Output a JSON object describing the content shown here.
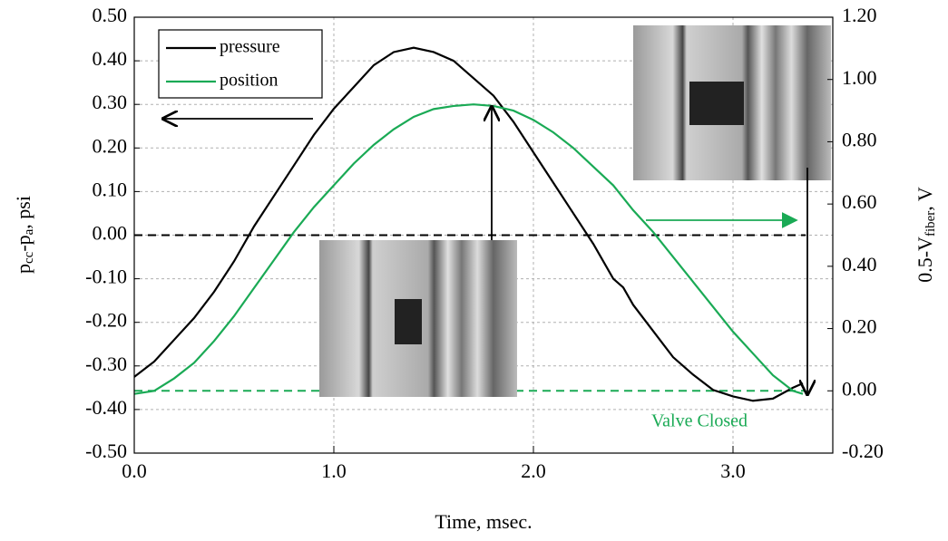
{
  "chart_data": {
    "type": "line",
    "xlabel": "Time, msec.",
    "ylabel": [
      "p",
      "cc",
      "-p",
      "a",
      ", psi"
    ],
    "y2label": [
      "0.5-V",
      "fiber",
      ", V"
    ],
    "x": [
      0.0,
      0.1,
      0.2,
      0.3,
      0.4,
      0.5,
      0.6,
      0.7,
      0.8,
      0.9,
      1.0,
      1.1,
      1.2,
      1.3,
      1.4,
      1.5,
      1.6,
      1.7,
      1.8,
      1.9,
      2.0,
      2.1,
      2.2,
      2.3,
      2.4,
      2.45,
      2.5,
      2.6,
      2.7,
      2.8,
      2.9,
      3.0,
      3.1,
      3.2,
      3.3,
      3.35
    ],
    "series": [
      {
        "name": "pressure",
        "color": "#000000",
        "axis": "y",
        "values": [
          -0.325,
          -0.29,
          -0.24,
          -0.19,
          -0.13,
          -0.06,
          0.02,
          0.09,
          0.16,
          0.23,
          0.29,
          0.34,
          0.39,
          0.42,
          0.43,
          0.42,
          0.4,
          0.36,
          0.32,
          0.26,
          0.19,
          0.12,
          0.05,
          -0.02,
          -0.1,
          -0.12,
          -0.16,
          -0.22,
          -0.28,
          -0.32,
          -0.355,
          -0.37,
          -0.38,
          -0.375,
          -0.35,
          -0.34
        ]
      },
      {
        "name": "position",
        "color": "#1aaa55",
        "axis": "y2",
        "values": [
          -0.01,
          0.0,
          0.04,
          0.09,
          0.16,
          0.24,
          0.33,
          0.42,
          0.51,
          0.59,
          0.66,
          0.73,
          0.79,
          0.84,
          0.88,
          0.905,
          0.915,
          0.92,
          0.915,
          0.9,
          0.87,
          0.83,
          0.78,
          0.72,
          0.66,
          0.62,
          0.58,
          0.51,
          0.43,
          0.35,
          0.27,
          0.19,
          0.12,
          0.05,
          0.0,
          -0.01
        ]
      }
    ],
    "hlines": [
      {
        "axis": "y",
        "value": 0,
        "color": "#000000"
      },
      {
        "axis": "y2",
        "value": 0,
        "color": "#1aaa55"
      }
    ],
    "annotation": "Valve Closed",
    "xlim": [
      0,
      3.5
    ],
    "xticks": [
      {
        "value": 0,
        "label": "0.0"
      },
      {
        "value": 1,
        "label": "1.0"
      },
      {
        "value": 2,
        "label": "2.0"
      },
      {
        "value": 3,
        "label": "3.0"
      }
    ],
    "ylim": [
      -0.5,
      0.5
    ],
    "yticks": [
      {
        "value": -0.5,
        "label": "-0.50"
      },
      {
        "value": -0.4,
        "label": "-0.40"
      },
      {
        "value": -0.3,
        "label": "-0.30"
      },
      {
        "value": -0.2,
        "label": "-0.20"
      },
      {
        "value": -0.1,
        "label": "-0.10"
      },
      {
        "value": 0,
        "label": "0.00"
      },
      {
        "value": 0.1,
        "label": "0.10"
      },
      {
        "value": 0.2,
        "label": "0.20"
      },
      {
        "value": 0.3,
        "label": "0.30"
      },
      {
        "value": 0.4,
        "label": "0.40"
      },
      {
        "value": 0.5,
        "label": "0.50"
      }
    ],
    "y2lim": [
      -0.2,
      1.2
    ],
    "y2ticks": [
      {
        "value": -0.2,
        "label": "-0.20"
      },
      {
        "value": 0,
        "label": "0.00"
      },
      {
        "value": 0.2,
        "label": "0.20"
      },
      {
        "value": 0.4,
        "label": "0.40"
      },
      {
        "value": 0.6,
        "label": "0.60"
      },
      {
        "value": 0.8,
        "label": "0.80"
      },
      {
        "value": 1.0,
        "label": "1.00"
      },
      {
        "value": 1.2,
        "label": "1.20"
      }
    ],
    "grid": true,
    "legend": "upper-left"
  }
}
